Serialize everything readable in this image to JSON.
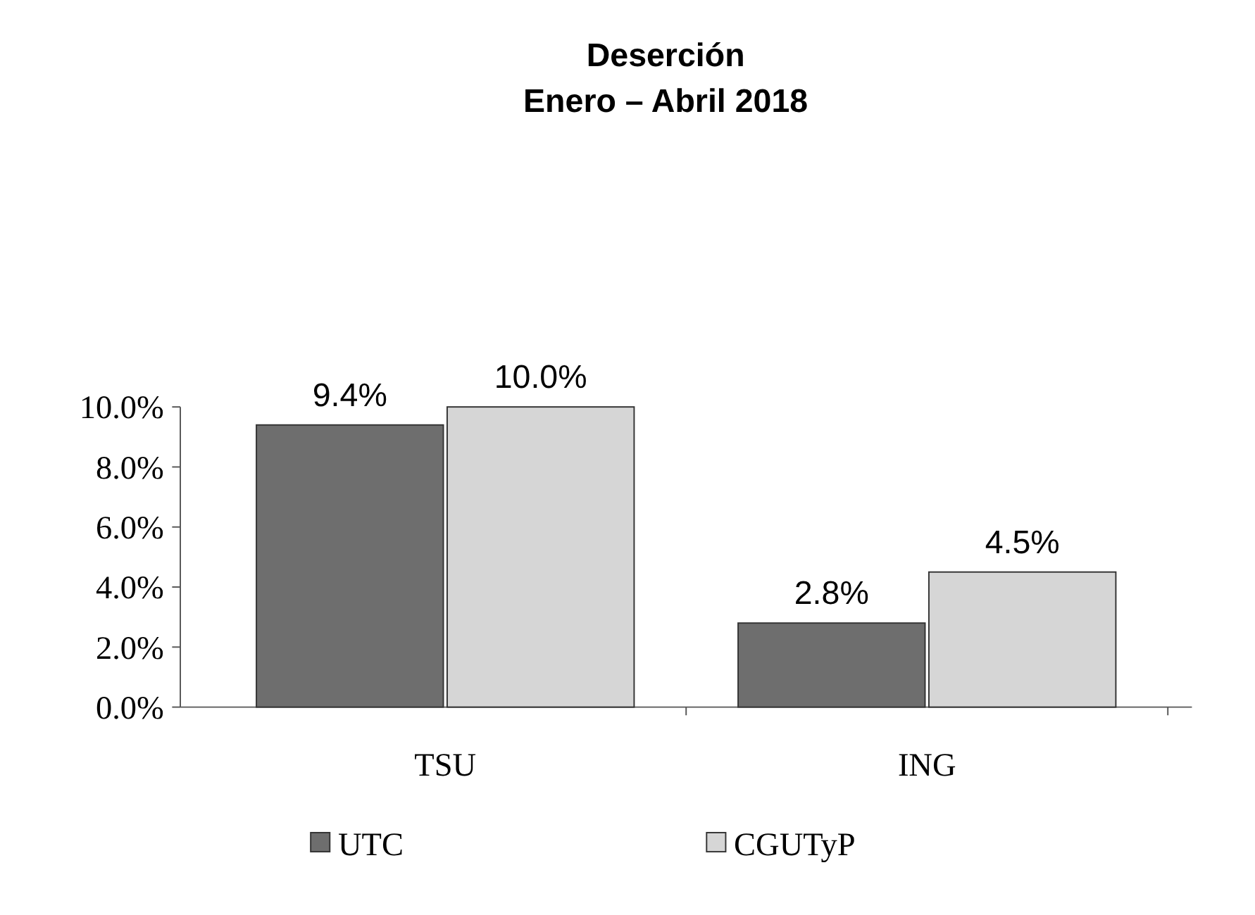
{
  "chart_data": {
    "type": "bar",
    "title": "Deserción",
    "subtitle": "Enero – Abril 2018",
    "categories": [
      "TSU",
      "ING"
    ],
    "series": [
      {
        "name": "UTC",
        "color": "#6e6e6e",
        "values": [
          9.4,
          2.8
        ],
        "value_labels": [
          "9.4%",
          "2.8%"
        ]
      },
      {
        "name": "CGUTyP",
        "color": "#d6d6d6",
        "values": [
          10.0,
          4.5
        ],
        "value_labels": [
          "10.0%",
          "4.5%"
        ]
      }
    ],
    "ylim": [
      0,
      10
    ],
    "yticks": [
      {
        "value": 0,
        "label": "0.0%"
      },
      {
        "value": 2,
        "label": "2.0%"
      },
      {
        "value": 4,
        "label": "4.0%"
      },
      {
        "value": 6,
        "label": "6.0%"
      },
      {
        "value": 8,
        "label": "8.0%"
      },
      {
        "value": 10,
        "label": "10.0%"
      }
    ],
    "grid": false,
    "legend": "bottom"
  }
}
